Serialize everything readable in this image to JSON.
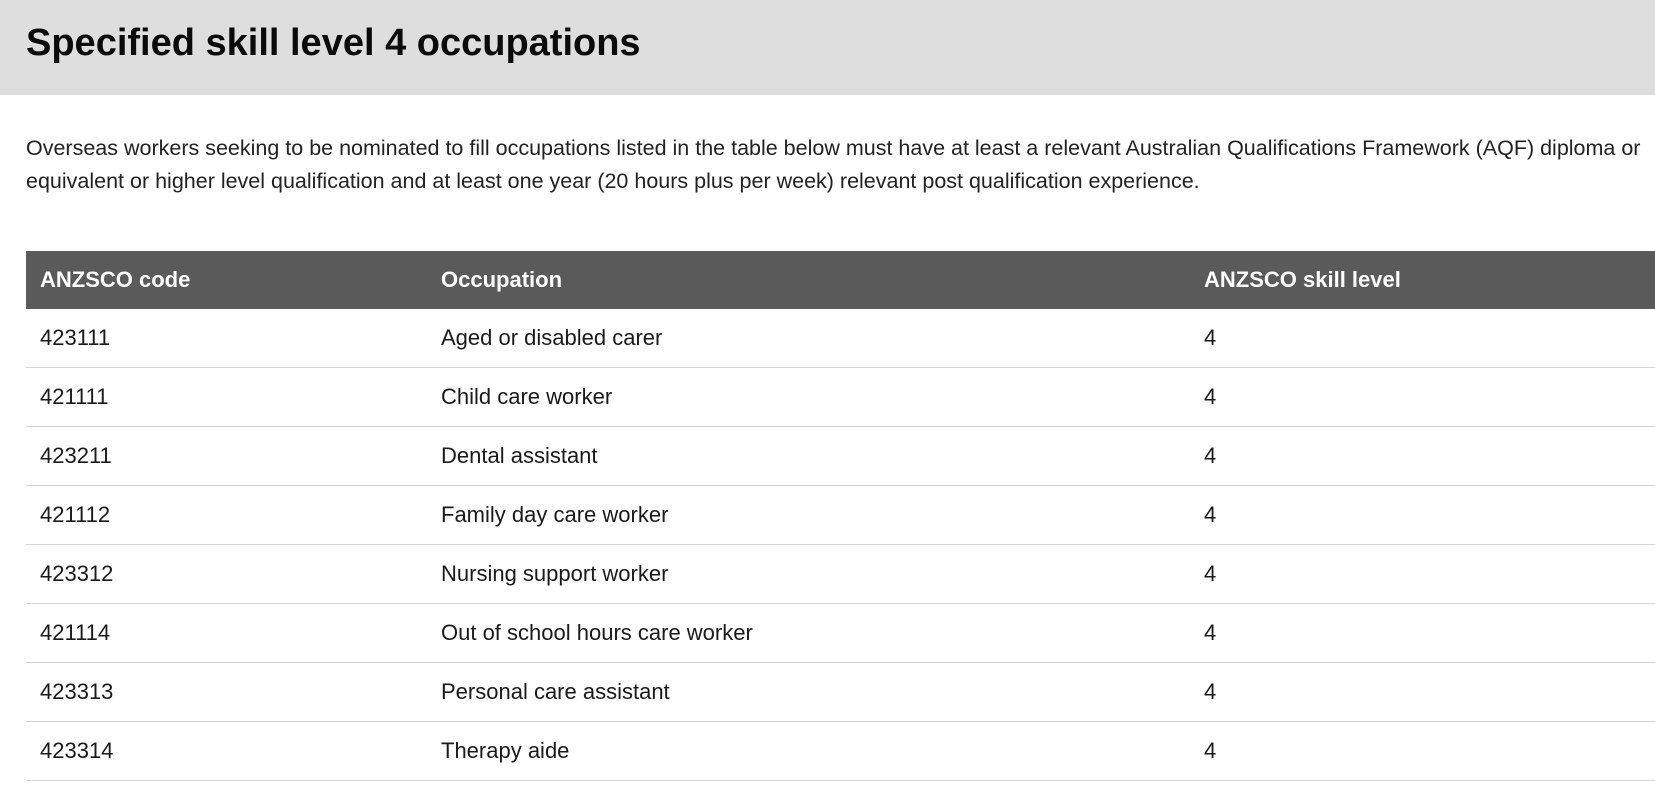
{
  "page": {
    "title": "Specified skill level 4 occupations",
    "intro": "Overseas workers seeking to be nominated to fill occupations listed in the table below must have at least a relevant Australian Qualifications Framework (AQF) diploma or equivalent or higher level qualification and at least one year (20 hours plus per week) relevant post qualification experience."
  },
  "table": {
    "headers": [
      "ANZSCO code",
      "Occupation",
      "ANZSCO skill level"
    ],
    "rows": [
      [
        "423111",
        "Aged or disabled carer",
        "4"
      ],
      [
        "421111",
        "Child care worker",
        "4"
      ],
      [
        "423211",
        "Dental assistant",
        "4"
      ],
      [
        "421112",
        "Family day care worker",
        "4"
      ],
      [
        "423312",
        "Nursing support worker",
        "4"
      ],
      [
        "421114",
        "Out of school hours care worker",
        "4"
      ],
      [
        "423313",
        "Personal care assistant",
        "4"
      ],
      [
        "423314",
        "Therapy aide",
        "4"
      ]
    ]
  }
}
